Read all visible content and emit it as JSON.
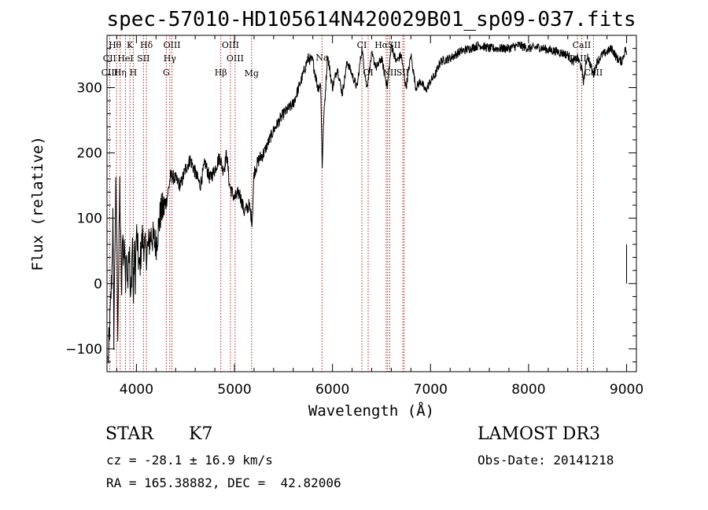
{
  "chart_data": {
    "type": "line",
    "title": "spec-57010-HD105614N420029B01_sp09-037.fits",
    "xlabel": "Wavelength (Å)",
    "ylabel": "Flux (relative)",
    "xlim": [
      3700,
      9100
    ],
    "ylim": [
      -135,
      380
    ],
    "x_ticks": [
      4000,
      5000,
      6000,
      7000,
      8000,
      9000
    ],
    "y_ticks": [
      -100,
      0,
      100,
      200,
      300
    ],
    "grid": false,
    "series": [
      {
        "name": "spectrum",
        "x": [
          3710,
          3730,
          3750,
          3760,
          3770,
          3780,
          3790,
          3800,
          3810,
          3820,
          3830,
          3840,
          3850,
          3860,
          3870,
          3880,
          3890,
          3900,
          3910,
          3920,
          3930,
          3940,
          3950,
          3960,
          3970,
          3980,
          3990,
          4000,
          4030,
          4060,
          4100,
          4150,
          4200,
          4250,
          4300,
          4350,
          4400,
          4450,
          4500,
          4550,
          4600,
          4650,
          4700,
          4750,
          4800,
          4850,
          4880,
          4900,
          4920,
          4950,
          5000,
          5050,
          5100,
          5150,
          5180,
          5200,
          5250,
          5300,
          5400,
          5500,
          5600,
          5700,
          5750,
          5800,
          5850,
          5880,
          5895,
          5910,
          5950,
          6000,
          6050,
          6100,
          6150,
          6200,
          6250,
          6300,
          6350,
          6400,
          6450,
          6500,
          6560,
          6600,
          6650,
          6700,
          6750,
          6800,
          6850,
          6900,
          6950,
          7000,
          7050,
          7100,
          7200,
          7300,
          7400,
          7500,
          7600,
          7700,
          7800,
          7900,
          8000,
          8100,
          8200,
          8300,
          8400,
          8450,
          8500,
          8540,
          8560,
          8600,
          8640,
          8662,
          8700,
          8750,
          8800,
          8850,
          8900,
          8950,
          8990,
          9000
        ],
        "values": [
          -120,
          -60,
          20,
          100,
          -80,
          50,
          140,
          80,
          -70,
          30,
          150,
          60,
          -20,
          90,
          30,
          70,
          -10,
          70,
          0,
          60,
          40,
          -40,
          20,
          70,
          -30,
          60,
          10,
          80,
          20,
          70,
          45,
          75,
          60,
          110,
          120,
          165,
          160,
          150,
          175,
          190,
          170,
          150,
          185,
          160,
          175,
          195,
          175,
          180,
          200,
          150,
          130,
          140,
          110,
          120,
          95,
          170,
          190,
          200,
          235,
          260,
          275,
          320,
          345,
          340,
          300,
          305,
          180,
          250,
          350,
          300,
          330,
          290,
          340,
          320,
          300,
          360,
          300,
          350,
          330,
          345,
          300,
          365,
          340,
          350,
          300,
          350,
          300,
          310,
          295,
          310,
          320,
          340,
          345,
          355,
          360,
          365,
          360,
          360,
          360,
          365,
          360,
          362,
          358,
          355,
          350,
          340,
          345,
          330,
          310,
          350,
          330,
          320,
          340,
          350,
          355,
          360,
          345,
          340,
          360,
          350
        ]
      }
    ],
    "annotations": [
      {
        "label": "Hθ",
        "x": 3798
      },
      {
        "label": "K",
        "x": 3934
      },
      {
        "label": "Hδ",
        "x": 4102
      },
      {
        "label": "OIII",
        "x": 4363
      },
      {
        "label": "OIII",
        "x": 4959
      },
      {
        "label": "CII",
        "x": 3727
      },
      {
        "label": "HeI",
        "x": 3889
      },
      {
        "label": "SII",
        "x": 4072
      },
      {
        "label": "Hγ",
        "x": 4341
      },
      {
        "label": "OIII",
        "x": 5007
      },
      {
        "label": "CIII",
        "x": 3727
      },
      {
        "label": "Hη",
        "x": 3835
      },
      {
        "label": "H",
        "x": 3968
      },
      {
        "label": "G",
        "x": 4305
      },
      {
        "label": "Hβ",
        "x": 4861
      },
      {
        "label": "Mg",
        "x": 5175
      },
      {
        "label": "Na",
        "x": 5893
      },
      {
        "label": "CI",
        "x": 6300
      },
      {
        "label": "OI",
        "x": 6364
      },
      {
        "label": "HαSII",
        "x": 6563
      },
      {
        "label": "NII",
        "x": 6584
      },
      {
        "label": "SII",
        "x": 6717
      },
      {
        "label": "CaII",
        "x": 8542
      },
      {
        "label": "CaII",
        "x": 8498
      },
      {
        "label": "CaII",
        "x": 8662
      }
    ],
    "line_markers": [
      3727,
      3798,
      3835,
      3889,
      3934,
      3968,
      4072,
      4102,
      4305,
      4341,
      4363,
      4861,
      4959,
      5007,
      5175,
      5893,
      6300,
      6364,
      6548,
      6563,
      6584,
      6717,
      6731,
      8498,
      8542,
      8662
    ]
  },
  "info": {
    "object_class": "STAR",
    "subclass": "K7",
    "survey": "LAMOST DR3",
    "cz": "cz = -28.1 ± 16.9 km/s",
    "obs_date": "Obs-Date: 20141218",
    "coords": "RA = 165.38882, DEC =  42.82006"
  },
  "colors": {
    "spectrum": "#000000",
    "markers": "#b22222",
    "background": "#ffffff"
  }
}
